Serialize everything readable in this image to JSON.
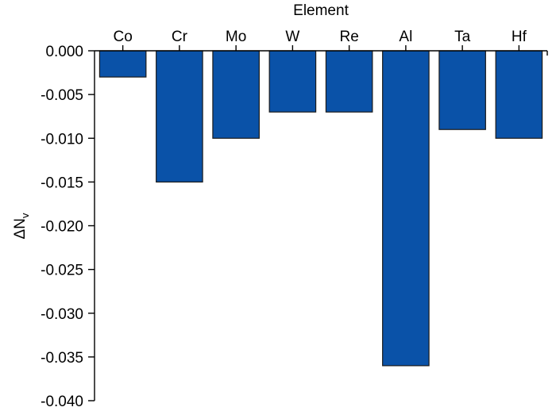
{
  "chart_data": {
    "type": "bar",
    "xlabel": "Element",
    "ylabel": "ΔN",
    "ylabel_subscript": "v",
    "categories": [
      "Co",
      "Cr",
      "Mo",
      "W",
      "Re",
      "Al",
      "Ta",
      "Hf"
    ],
    "values": [
      -0.003,
      -0.015,
      -0.01,
      -0.007,
      -0.007,
      -0.036,
      -0.009,
      -0.01
    ],
    "ylim": [
      -0.04,
      0.0
    ],
    "yticks": [
      "0.000",
      "-0.005",
      "-0.010",
      "-0.015",
      "-0.020",
      "-0.025",
      "-0.030",
      "-0.035",
      "-0.040"
    ],
    "ytick_values": [
      0.0,
      -0.005,
      -0.01,
      -0.015,
      -0.02,
      -0.025,
      -0.03,
      -0.035,
      -0.04
    ],
    "x_axis_position": "top",
    "grid": false,
    "bar_color": "#0a52a8"
  }
}
